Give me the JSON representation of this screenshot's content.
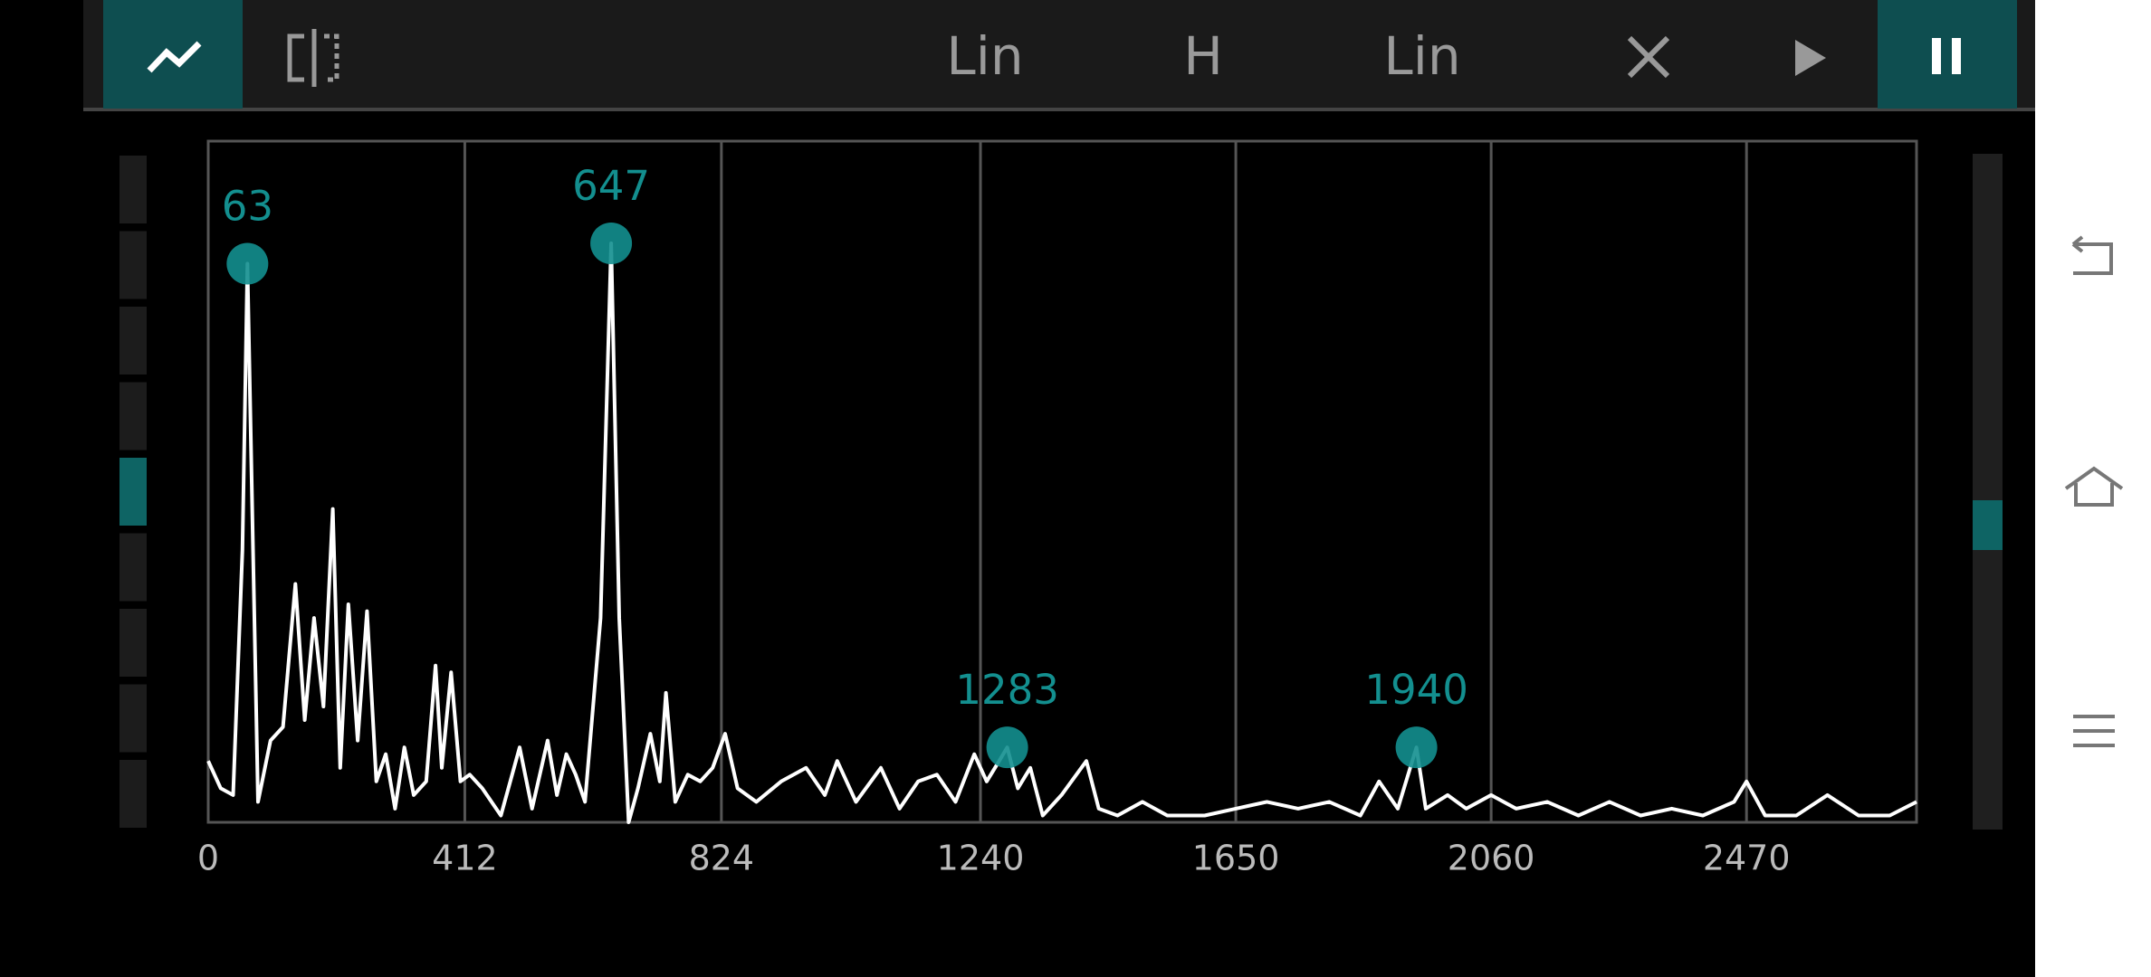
{
  "toolbar": {
    "x_scale": "Lin",
    "mode": "H",
    "y_scale": "Lin"
  },
  "chart_data": {
    "type": "line",
    "x": [
      0,
      20,
      40,
      55,
      63,
      72,
      80,
      100,
      120,
      140,
      155,
      170,
      185,
      200,
      212,
      225,
      240,
      255,
      270,
      285,
      300,
      315,
      330,
      350,
      365,
      375,
      390,
      405,
      420,
      440,
      470,
      500,
      520,
      545,
      560,
      575,
      590,
      605,
      630,
      647,
      660,
      675,
      690,
      710,
      725,
      735,
      750,
      770,
      790,
      810,
      830,
      850,
      880,
      920,
      960,
      990,
      1010,
      1040,
      1080,
      1110,
      1140,
      1170,
      1200,
      1230,
      1250,
      1270,
      1283,
      1300,
      1320,
      1340,
      1370,
      1410,
      1430,
      1460,
      1500,
      1540,
      1600,
      1650,
      1700,
      1750,
      1800,
      1850,
      1880,
      1910,
      1940,
      1955,
      1990,
      2020,
      2060,
      2100,
      2150,
      2200,
      2250,
      2300,
      2350,
      2400,
      2450,
      2470,
      2500,
      2550,
      2600,
      2650,
      2700,
      2743
    ],
    "values": [
      9,
      5,
      4,
      40,
      82,
      40,
      3,
      12,
      14,
      35,
      15,
      30,
      17,
      46,
      8,
      32,
      12,
      31,
      6,
      10,
      2,
      11,
      4,
      6,
      23,
      8,
      22,
      6,
      7,
      5,
      1,
      11,
      2,
      12,
      4,
      10,
      7,
      3,
      30,
      85,
      30,
      0,
      5,
      13,
      6,
      19,
      3,
      7,
      6,
      8,
      13,
      5,
      3,
      6,
      8,
      4,
      9,
      3,
      8,
      2,
      6,
      7,
      3,
      10,
      6,
      9,
      11,
      5,
      8,
      1,
      4,
      9,
      2,
      1,
      3,
      1,
      1,
      2,
      3,
      2,
      3,
      1,
      6,
      2,
      11,
      2,
      4,
      2,
      4,
      2,
      3,
      1,
      3,
      1,
      2,
      1,
      3,
      6,
      1,
      1,
      4,
      1,
      1,
      3
    ],
    "peaks": [
      63,
      647,
      1283,
      1940
    ],
    "color": "#ffffff",
    "peak_color": "#138f8f",
    "xlim": [
      0,
      2743
    ],
    "ylim": [
      0,
      100
    ],
    "xticks": [
      0,
      412,
      824,
      1240,
      1650,
      2060,
      2470
    ],
    "grid": true
  }
}
